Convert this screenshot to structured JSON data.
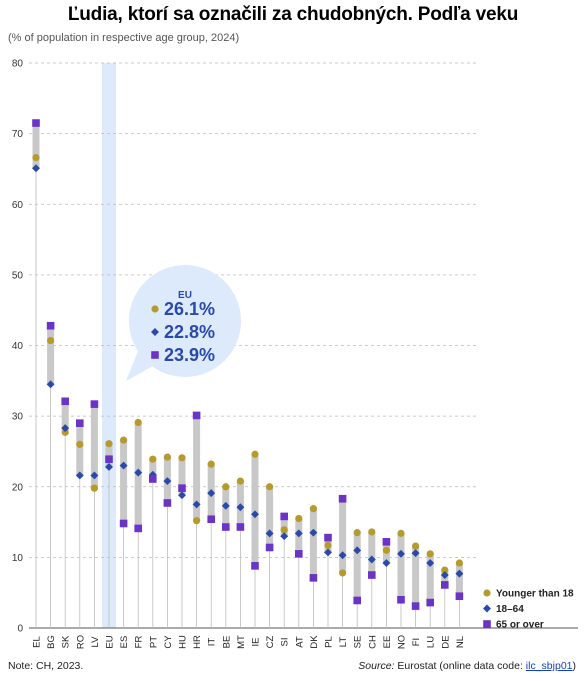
{
  "header": {
    "title": "Ľudia, ktorí sa označili za chudobných. Podľa veku",
    "subtitle": "(% of population in respective age group, 2024)"
  },
  "footer": {
    "note": "Note: CH, 2023.",
    "source_label": "Source:",
    "source_text": " Eurostat (online data code: ",
    "source_code": "ilc_sbjp01",
    "source_end": ")"
  },
  "colors": {
    "young": "#b59a2e",
    "adult": "#2b4aa8",
    "old": "#6a34c4",
    "range_bar": "#c8c8c8",
    "highlight": "#dceafb",
    "grid": "#bbbbbb"
  },
  "callout": {
    "name": "EU",
    "values": [
      "26.1%",
      "22.8%",
      "23.9%"
    ]
  },
  "chart_data": {
    "type": "dot-range",
    "title": "Ľudia, ktorí sa označili za chudobných. Podľa veku",
    "subtitle": "(% of population in respective age group, 2024)",
    "xlabel": "",
    "ylabel": "",
    "ylim": [
      0,
      80
    ],
    "yticks": [
      0,
      10,
      20,
      30,
      40,
      50,
      60,
      70,
      80
    ],
    "grid": true,
    "legend_position": "bottom-right",
    "highlight_category": "EU",
    "categories": [
      "EL",
      "BG",
      "SK",
      "RO",
      "LV",
      "EU",
      "ES",
      "FR",
      "PT",
      "CY",
      "HU",
      "HR",
      "IT",
      "BE",
      "MT",
      "IE",
      "CZ",
      "SI",
      "AT",
      "DK",
      "PL",
      "LT",
      "SE",
      "CH",
      "EE",
      "NO",
      "FI",
      "LU",
      "DE",
      "NL"
    ],
    "series": [
      {
        "name": "Younger than 18",
        "marker": "circle",
        "values": [
          66.6,
          40.7,
          27.7,
          26.0,
          19.8,
          26.1,
          26.6,
          29.1,
          23.9,
          24.2,
          24.1,
          15.2,
          23.2,
          20.0,
          20.8,
          24.6,
          20.0,
          13.9,
          15.5,
          16.9,
          11.7,
          7.8,
          13.5,
          13.6,
          11.0,
          13.4,
          11.6,
          10.5,
          8.2,
          9.2
        ]
      },
      {
        "name": "18–64",
        "marker": "diamond",
        "values": [
          65.1,
          34.5,
          28.3,
          21.6,
          21.6,
          22.8,
          23.0,
          22.0,
          21.7,
          20.8,
          18.8,
          17.5,
          19.1,
          17.3,
          17.1,
          16.1,
          13.4,
          13.0,
          13.4,
          13.5,
          10.7,
          10.3,
          11.0,
          9.7,
          9.2,
          10.5,
          10.6,
          9.2,
          7.5,
          7.7
        ]
      },
      {
        "name": "65 or over",
        "marker": "square",
        "values": [
          71.5,
          42.8,
          32.1,
          29.0,
          31.7,
          23.9,
          14.8,
          14.1,
          21.1,
          17.7,
          19.8,
          30.1,
          15.4,
          14.3,
          14.3,
          8.8,
          11.4,
          15.8,
          10.5,
          7.1,
          12.8,
          18.3,
          3.9,
          7.5,
          12.2,
          4.0,
          3.1,
          3.6,
          6.1,
          4.5
        ]
      }
    ]
  }
}
